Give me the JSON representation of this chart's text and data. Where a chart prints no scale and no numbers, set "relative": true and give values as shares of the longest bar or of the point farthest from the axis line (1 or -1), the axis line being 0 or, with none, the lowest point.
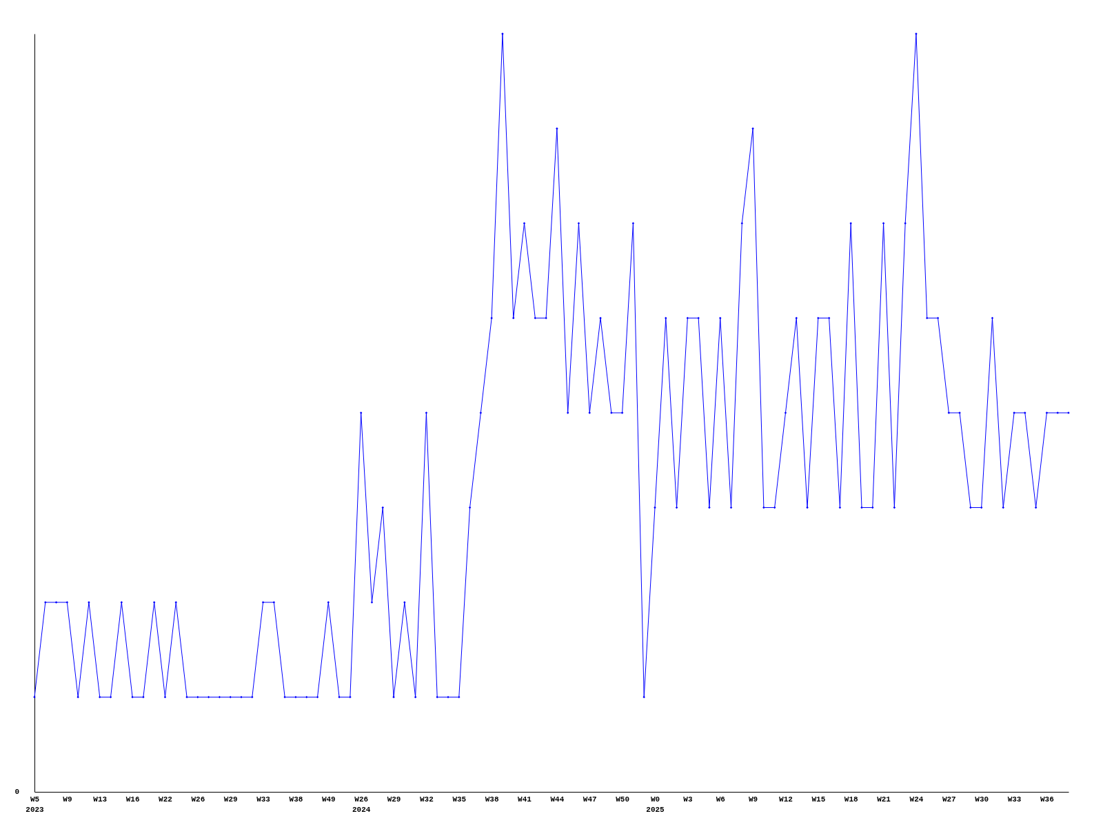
{
  "chart_data": {
    "type": "line",
    "relative": true,
    "marker": "diamond",
    "grid": false,
    "categories": [
      "W5\n2023",
      null,
      null,
      "W9",
      null,
      null,
      "W13",
      null,
      null,
      "W16",
      null,
      null,
      "W22",
      null,
      null,
      "W26",
      null,
      null,
      "W29",
      null,
      null,
      "W33",
      null,
      null,
      "W38",
      null,
      null,
      "W49",
      null,
      null,
      "W26\n2024",
      null,
      null,
      "W29",
      null,
      null,
      "W32",
      null,
      null,
      "W35",
      null,
      null,
      "W38",
      null,
      null,
      "W41",
      null,
      null,
      "W44",
      null,
      null,
      "W47",
      null,
      null,
      "W50",
      null,
      null,
      "W0\n2025",
      null,
      null,
      "W3",
      null,
      null,
      "W6",
      null,
      null,
      "W9",
      null,
      null,
      "W12",
      null,
      null,
      "W15",
      null,
      null,
      "W18",
      null,
      null,
      "W21",
      null,
      null,
      "W24",
      null,
      null,
      "W27",
      null,
      null,
      "W30",
      null,
      null,
      "W33",
      null,
      null,
      "W36",
      null,
      null
    ],
    "series": [
      {
        "color": "#0000ff",
        "values": [
          0.125,
          0.25,
          0.25,
          0.25,
          0.125,
          0.25,
          0.125,
          0.125,
          0.25,
          0.125,
          0.125,
          0.25,
          0.125,
          0.25,
          0.125,
          0.125,
          0.125,
          0.125,
          0.125,
          0.125,
          0.125,
          0.25,
          0.25,
          0.125,
          0.125,
          0.125,
          0.125,
          0.25,
          0.125,
          0.125,
          0.5,
          0.25,
          0.375,
          0.125,
          0.25,
          0.125,
          0.5,
          0.125,
          0.125,
          0.125,
          0.375,
          0.5,
          0.625,
          1,
          0.625,
          0.75,
          0.625,
          0.625,
          0.875,
          0.5,
          0.75,
          0.5,
          0.625,
          0.5,
          0.5,
          0.75,
          0.125,
          0.375,
          0.625,
          0.375,
          0.625,
          0.625,
          0.375,
          0.625,
          0.375,
          0.75,
          0.875,
          0.375,
          0.375,
          0.5,
          0.625,
          0.375,
          0.625,
          0.625,
          0.375,
          0.75,
          0.375,
          0.375,
          0.75,
          0.375,
          0.75,
          1,
          0.625,
          0.625,
          0.5,
          0.5,
          0.375,
          0.375,
          0.625,
          0.375,
          0.5,
          0.5,
          0.375,
          0.5,
          0.5,
          0.5
        ]
      }
    ],
    "annotations": [
      "0"
    ]
  }
}
